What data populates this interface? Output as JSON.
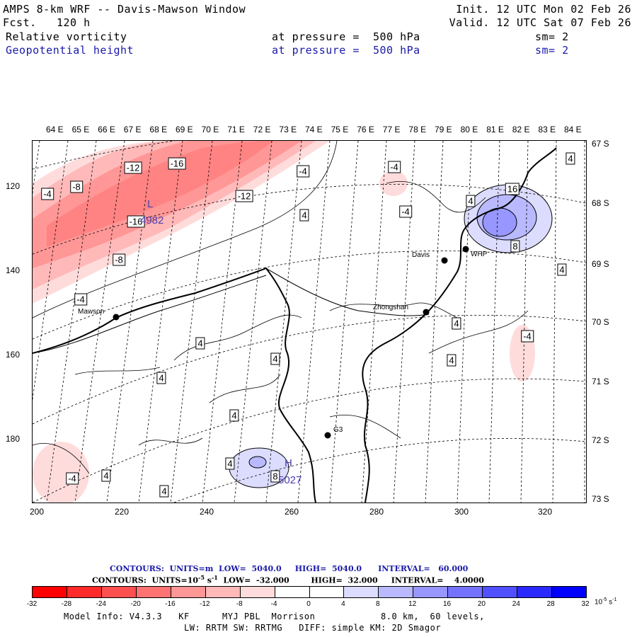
{
  "header": {
    "title": "AMPS 8-km WRF -- Davis-Mawson Window",
    "fcst_label": "Fcst.",
    "fcst_value": "120 h",
    "init": "Init. 12 UTC Mon 02 Feb 26",
    "valid": "Valid. 12 UTC Sat 07 Feb 26",
    "field1": {
      "name": "Relative vorticity",
      "level": "at pressure =  500 hPa",
      "sm": "sm= 2"
    },
    "field2": {
      "name": "Geopotential height",
      "level": "at pressure =  500 hPa",
      "sm": "sm= 2"
    }
  },
  "lon_labels": [
    "64 E",
    "65 E",
    "66 E",
    "67 E",
    "68 E",
    "69 E",
    "70 E",
    "71 E",
    "72 E",
    "73 E",
    "74 E",
    "75 E",
    "76 E",
    "77 E",
    "78 E",
    "79 E",
    "80 E",
    "81 E",
    "82 E",
    "83 E",
    "84 E"
  ],
  "lat_labels": [
    "67 S",
    "68 S",
    "69 S",
    "70 S",
    "71 S",
    "72 S",
    "73 S"
  ],
  "y_ticks": [
    "120",
    "140",
    "160",
    "180"
  ],
  "x_ticks": [
    "200",
    "220",
    "240",
    "260",
    "280",
    "300",
    "320"
  ],
  "contour_labels": [
    "-16",
    "-12",
    "-4",
    "-8",
    "-4",
    "-12",
    "-16",
    "-8",
    "-4",
    "4",
    "-4",
    "-4",
    "4",
    "16",
    "8",
    "4",
    "4",
    "-4",
    "4",
    "4",
    "4",
    "4",
    "4",
    "4",
    "-4",
    "4",
    "8",
    "4",
    "4",
    "4",
    "-4"
  ],
  "stations": [
    "Davis",
    "WHP",
    "Zhongshan",
    "Mawson",
    "G3"
  ],
  "highs_lows": {
    "L_label": "L",
    "L_value": "4982",
    "H_label": "H",
    "H_value": "5027"
  },
  "contour_info": {
    "line1": "CONTOURS:  UNITS=m  LOW=  5040.0     HIGH=  5040.0      INTERVAL=   60.000",
    "line2": "CONTOURS:  UNITS=10",
    "line2_exp": "-5",
    "line2_rest": " s",
    "line2_exp2": "-1",
    "line2_tail": "  LOW=  -32.000        HIGH=  32.000     INTERVAL=    4.0000"
  },
  "colorbar": {
    "labels": [
      "-32",
      "-28",
      "-24",
      "-20",
      "-16",
      "-12",
      "-8",
      "-4",
      "0",
      "4",
      "8",
      "12",
      "16",
      "20",
      "24",
      "28",
      "32"
    ],
    "unit_base": "10",
    "unit_exp": "-5",
    "unit_s": "s",
    "unit_exp2": "-1",
    "colors": [
      "#ff0000",
      "#ff2a2a",
      "#ff5050",
      "#ff7373",
      "#ff9797",
      "#ffb9b9",
      "#ffdcdc",
      "#ffffff",
      "#ffffff",
      "#dcdcff",
      "#b9b9ff",
      "#9797ff",
      "#7373ff",
      "#5050ff",
      "#2a2aff",
      "#0000ff"
    ]
  },
  "footer": {
    "line1": "Model Info: V4.3.3   KF      MYJ PBL  Morrison            8.0 km,  60 levels,",
    "line2": "LW: RRTM SW: RRTMG   DIFF: simple KM: 2D Smagor"
  }
}
